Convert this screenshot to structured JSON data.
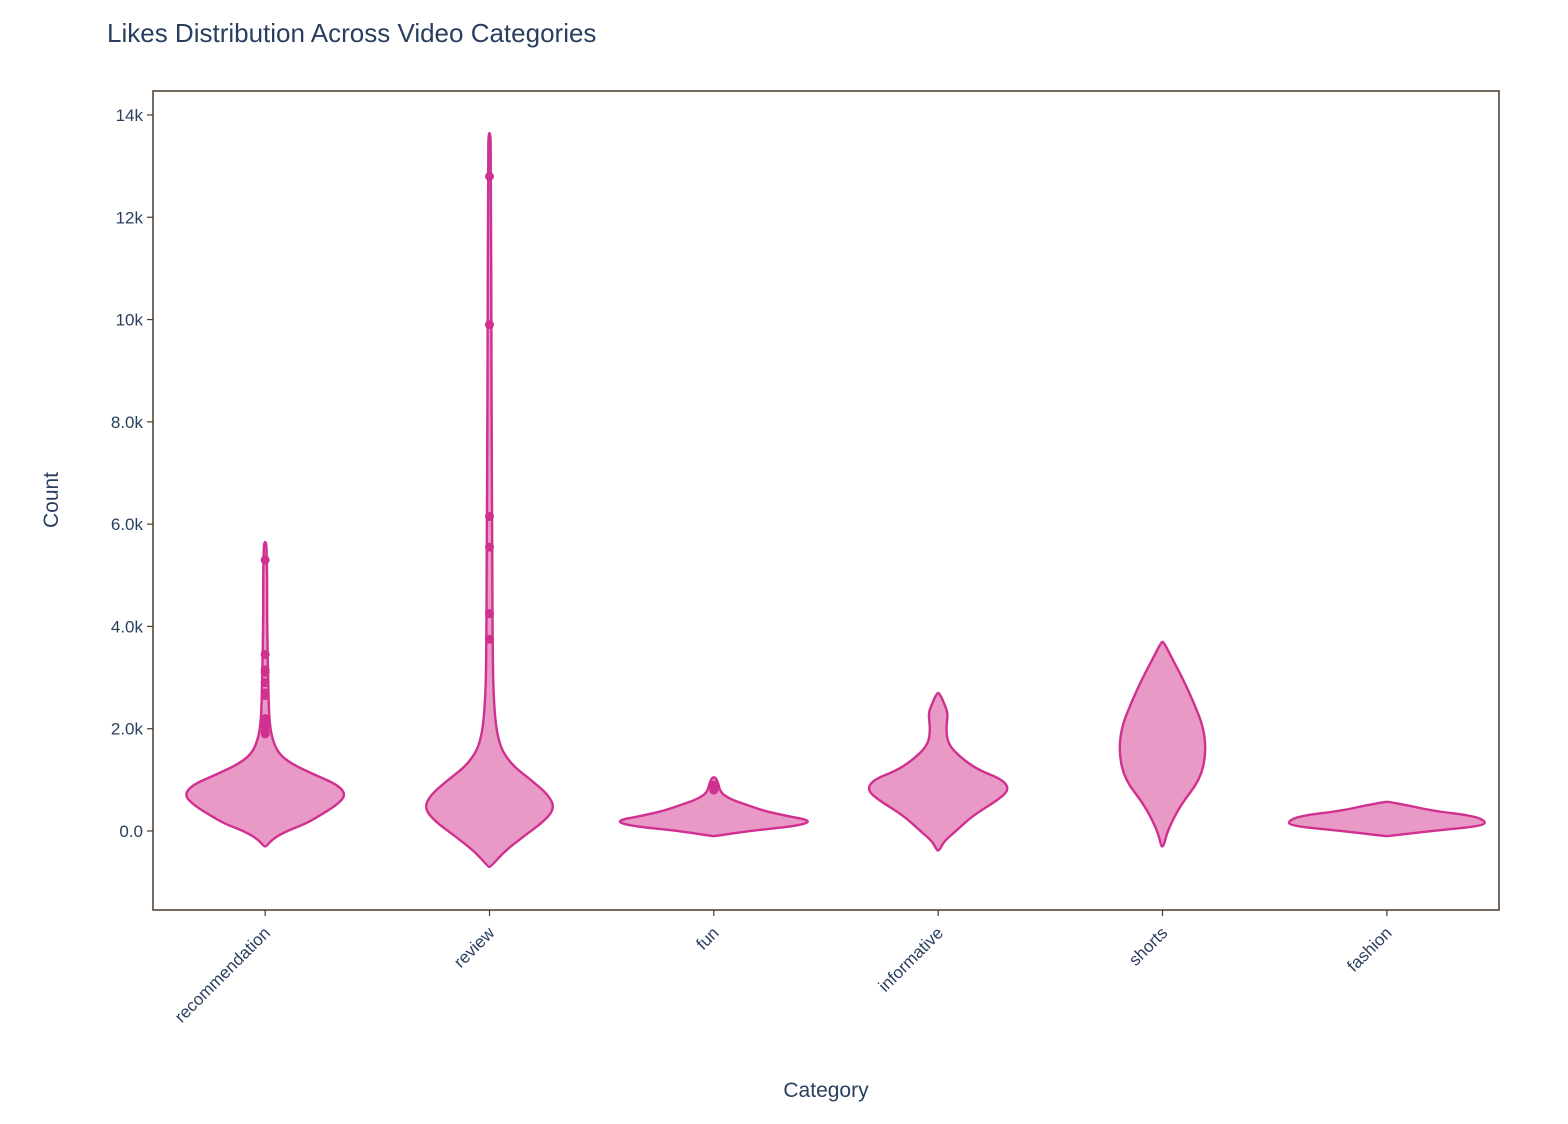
{
  "chart_data": {
    "type": "violin",
    "title": "Likes Distribution Across Video Categories",
    "xlabel": "Category",
    "ylabel": "Count",
    "ylim": [
      -1500,
      14450
    ],
    "yticks": [
      0,
      2000,
      4000,
      6000,
      8000,
      10000,
      12000,
      14000
    ],
    "ytick_labels": [
      "0.0",
      "2.0k",
      "4.0k",
      "6.0k",
      "8.0k",
      "10k",
      "12k",
      "14k"
    ],
    "grid": false,
    "colors": {
      "fill": "#e899c6",
      "line": "#d0308f",
      "frame": "#4a3a2a"
    },
    "categories": [
      "recommendation",
      "review",
      "fun",
      "informative",
      "shorts",
      "fashion"
    ],
    "violins": [
      {
        "category": "recommendation",
        "profile": [
          [
            -300,
            0
          ],
          [
            -150,
            0.08
          ],
          [
            0,
            0.22
          ],
          [
            150,
            0.42
          ],
          [
            300,
            0.55
          ],
          [
            500,
            0.72
          ],
          [
            700,
            0.82
          ],
          [
            900,
            0.74
          ],
          [
            1100,
            0.5
          ],
          [
            1300,
            0.28
          ],
          [
            1500,
            0.14
          ],
          [
            1800,
            0.07
          ],
          [
            2200,
            0.04
          ],
          [
            3000,
            0.03
          ],
          [
            3500,
            0.025
          ],
          [
            4200,
            0.02
          ],
          [
            5000,
            0.02
          ],
          [
            5400,
            0.015
          ],
          [
            5650,
            0
          ]
        ],
        "outliers": [
          5300,
          3450,
          3150,
          3100,
          2900,
          2700,
          2650,
          2200,
          2150,
          2050,
          1950,
          1900
        ]
      },
      {
        "category": "review",
        "profile": [
          [
            -700,
            0
          ],
          [
            -400,
            0.15
          ],
          [
            -100,
            0.35
          ],
          [
            200,
            0.56
          ],
          [
            450,
            0.66
          ],
          [
            700,
            0.6
          ],
          [
            1000,
            0.42
          ],
          [
            1300,
            0.22
          ],
          [
            1700,
            0.09
          ],
          [
            2500,
            0.04
          ],
          [
            4000,
            0.03
          ],
          [
            6000,
            0.028
          ],
          [
            8000,
            0.02
          ],
          [
            10000,
            0.02
          ],
          [
            12000,
            0.015
          ],
          [
            13000,
            0.012
          ],
          [
            13650,
            0
          ]
        ],
        "outliers": [
          12800,
          9900,
          6150,
          5550,
          4250,
          3750
        ]
      },
      {
        "category": "fun",
        "profile": [
          [
            -100,
            0
          ],
          [
            0,
            0.35
          ],
          [
            100,
            0.85
          ],
          [
            200,
            1.0
          ],
          [
            300,
            0.72
          ],
          [
            400,
            0.5
          ],
          [
            500,
            0.35
          ],
          [
            600,
            0.2
          ],
          [
            700,
            0.1
          ],
          [
            800,
            0.06
          ],
          [
            900,
            0.05
          ],
          [
            1000,
            0.03
          ],
          [
            1050,
            0
          ]
        ],
        "outliers": [
          900,
          880,
          860,
          840,
          820,
          800
        ]
      },
      {
        "category": "informative",
        "profile": [
          [
            -380,
            0
          ],
          [
            -200,
            0.06
          ],
          [
            0,
            0.18
          ],
          [
            300,
            0.35
          ],
          [
            600,
            0.6
          ],
          [
            800,
            0.72
          ],
          [
            1000,
            0.66
          ],
          [
            1200,
            0.4
          ],
          [
            1450,
            0.22
          ],
          [
            1700,
            0.1
          ],
          [
            2000,
            0.08
          ],
          [
            2300,
            0.1
          ],
          [
            2500,
            0.06
          ],
          [
            2700,
            0
          ]
        ],
        "outliers": []
      },
      {
        "category": "shorts",
        "profile": [
          [
            -300,
            0
          ],
          [
            0,
            0.05
          ],
          [
            500,
            0.18
          ],
          [
            1000,
            0.38
          ],
          [
            1500,
            0.44
          ],
          [
            2000,
            0.42
          ],
          [
            2500,
            0.32
          ],
          [
            3000,
            0.2
          ],
          [
            3400,
            0.09
          ],
          [
            3700,
            0
          ]
        ],
        "outliers": []
      },
      {
        "category": "fashion",
        "profile": [
          [
            -100,
            0
          ],
          [
            0,
            0.45
          ],
          [
            100,
            0.98
          ],
          [
            200,
            1.0
          ],
          [
            300,
            0.86
          ],
          [
            400,
            0.45
          ],
          [
            500,
            0.22
          ],
          [
            570,
            0
          ]
        ],
        "outliers": []
      }
    ]
  }
}
